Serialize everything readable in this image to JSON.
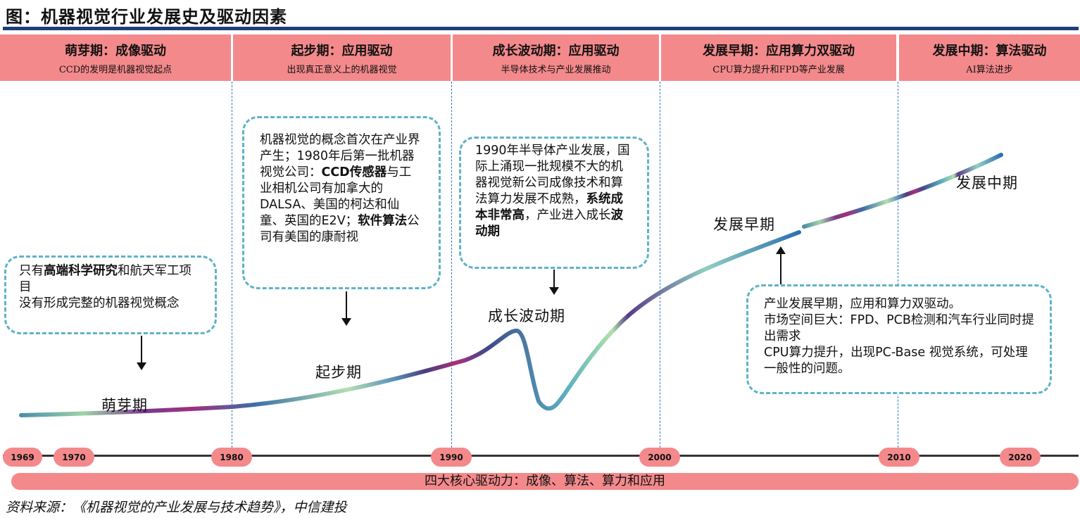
{
  "title": "图：机器视觉行业发展史及驱动因素",
  "phases": [
    {
      "title": "萌芽期：成像驱动",
      "subtitle": "CCD的发明是机器视觉起点"
    },
    {
      "title": "起步期：应用驱动",
      "subtitle": "出现真正意义上的机器视觉"
    },
    {
      "title": "成长波动期：应用驱动",
      "subtitle": "半导体技术与产业发展推动"
    },
    {
      "title": "发展早期：应用算力双驱动",
      "subtitle": "CPU算力提升和FPD等产业发展"
    },
    {
      "title": "发展中期：算法驱动",
      "subtitle": "AI算法进步"
    }
  ],
  "callouts": {
    "c1": {
      "p1": "只有",
      "b1": "高端科学研究",
      "p2": "和航天军工项目",
      "p3": "没有形成完整的机器视觉概念"
    },
    "c2": {
      "p1": "机器视觉的概念首次在产业界产生；1980年后第一批机器视觉公司：",
      "b1": "CCD传感器",
      "p2": "与工业相机公司有加拿大的DALSA、美国的柯达和仙童、英国的E2V；",
      "b2": "软件算法",
      "p3": "公司有美国的康耐视"
    },
    "c3": {
      "p1": "1990年半导体产业发展，国际上涌现一批规模不大的机器视觉新公司成像技术和算法算力发展不成熟，",
      "b1": "系统成本非常高",
      "p2": "，产业进入成长",
      "b2": "波动期"
    },
    "c4": {
      "l1": "产业发展早期，应用和算力双驱动。",
      "l2": "市场空间巨大：FPD、PCB检测和汽车行业同时提出需求",
      "l3": "CPU算力提升，出现PC-Base 视觉系统，可处理一般性的问题。"
    }
  },
  "curve_labels": [
    "萌芽期",
    "起步期",
    "成长波动期",
    "发展早期",
    "发展中期"
  ],
  "years": [
    "1969",
    "1970",
    "1980",
    "1990",
    "2000",
    "2010",
    "2020"
  ],
  "drivers": "四大核心驱动力：成像、算法、算力和应用",
  "source": "资料来源：《机器视觉的产业发展与技术趋势》，中信建投",
  "colors": {
    "header": "#f4898b",
    "rule": "#1f3d7a",
    "callout_border": "#5fb3c7",
    "divider": "#2e78c0"
  }
}
